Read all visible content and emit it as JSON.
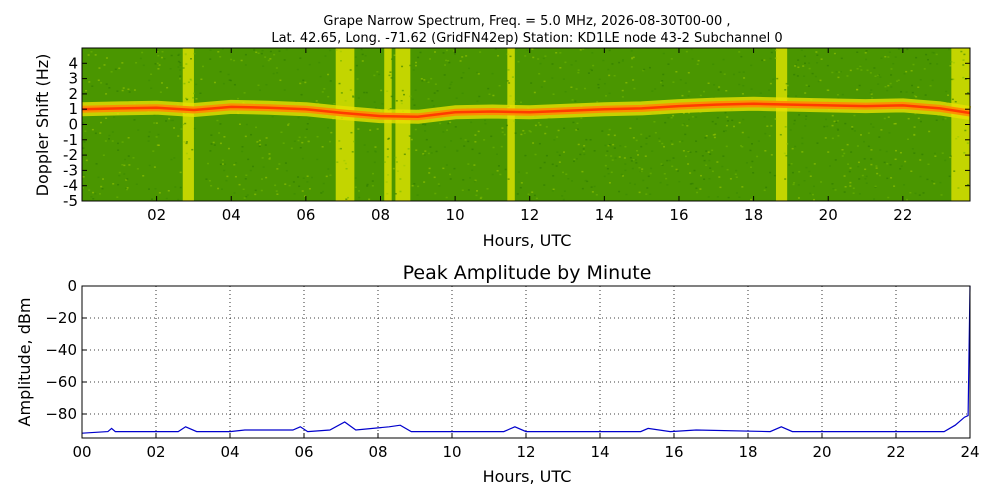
{
  "figure": {
    "title_line1": "Grape Narrow Spectrum, Freq. = 5.0 MHz, 2026-08-30T00-00 ,",
    "title_line2": "Lat.  42.65, Long. -71.62 (GridFN42ep) Station: KD1LE node 43-2 Subchannel 0"
  },
  "chart_data": [
    {
      "type": "heatmap",
      "title": "",
      "xlabel": "Hours, UTC",
      "ylabel": "Doppler Shift (Hz)",
      "xlim": [
        0,
        23.8
      ],
      "ylim": [
        -5,
        5
      ],
      "x_ticks": [
        "02",
        "04",
        "06",
        "08",
        "10",
        "12",
        "14",
        "16",
        "18",
        "20",
        "22"
      ],
      "y_ticks": [
        "4",
        "3",
        "2",
        "1",
        "0",
        "-1",
        "-2",
        "-3",
        "-4",
        "-5"
      ],
      "colormap": "green-yellow-red",
      "colors": {
        "low": "#3f8f00",
        "mid": "#b8c800",
        "high": "#ff5a00"
      },
      "signal_trace_hz": [
        [
          0,
          1.0
        ],
        [
          1,
          1.05
        ],
        [
          2,
          1.1
        ],
        [
          3,
          0.95
        ],
        [
          4,
          1.15
        ],
        [
          5,
          1.1
        ],
        [
          6,
          1.0
        ],
        [
          7,
          0.75
        ],
        [
          8,
          0.55
        ],
        [
          9,
          0.5
        ],
        [
          10,
          0.8
        ],
        [
          11,
          0.85
        ],
        [
          12,
          0.8
        ],
        [
          13,
          0.9
        ],
        [
          14,
          1.0
        ],
        [
          15,
          1.05
        ],
        [
          16,
          1.2
        ],
        [
          17,
          1.3
        ],
        [
          18,
          1.35
        ],
        [
          19,
          1.3
        ],
        [
          20,
          1.25
        ],
        [
          21,
          1.2
        ],
        [
          22,
          1.25
        ],
        [
          23,
          1.05
        ],
        [
          23.8,
          0.75
        ]
      ],
      "bright_bands_hours": [
        [
          2.7,
          3.0
        ],
        [
          6.8,
          7.3
        ],
        [
          8.1,
          8.3
        ],
        [
          8.4,
          8.8
        ],
        [
          11.4,
          11.6
        ],
        [
          18.6,
          18.9
        ],
        [
          23.3,
          23.8
        ]
      ]
    },
    {
      "type": "line",
      "title": "Peak Amplitude by Minute",
      "xlabel": "Hours, UTC",
      "ylabel": "Amplitude, dBm",
      "xlim": [
        0,
        24
      ],
      "ylim": [
        -95,
        0
      ],
      "x_ticks": [
        "00",
        "02",
        "04",
        "06",
        "08",
        "10",
        "12",
        "14",
        "16",
        "18",
        "20",
        "22",
        "24"
      ],
      "y_ticks": [
        "0",
        "−20",
        "−40",
        "−60",
        "−80"
      ],
      "grid": true,
      "line_color": "#0000cc",
      "series": [
        {
          "x": [
            0,
            0.7,
            0.8,
            0.9,
            2.6,
            2.8,
            3.1,
            4.0,
            4.4,
            5.7,
            5.9,
            6.1,
            6.7,
            7.1,
            7.4,
            8.3,
            8.6,
            8.9,
            11.4,
            11.7,
            12.0,
            15.1,
            15.3,
            15.9,
            16.6,
            18.6,
            18.9,
            19.2,
            23.3,
            23.6,
            23.85,
            23.95,
            24.0
          ],
          "y": [
            -92,
            -91,
            -89,
            -91,
            -91,
            -88,
            -91,
            -91,
            -90,
            -90,
            -88,
            -91,
            -90,
            -85,
            -90,
            -88,
            -87,
            -91,
            -91,
            -88,
            -91,
            -91,
            -89,
            -91,
            -90,
            -91,
            -88,
            -91,
            -91,
            -87,
            -82,
            -81,
            0
          ]
        }
      ]
    }
  ]
}
